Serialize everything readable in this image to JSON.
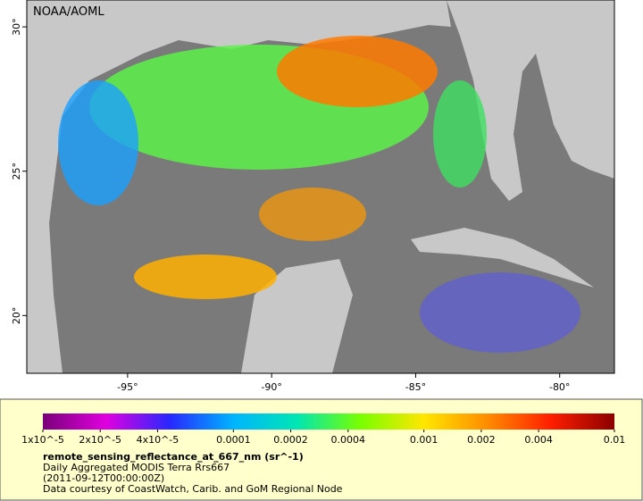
{
  "map": {
    "credit": "NOAA/AOML",
    "xlim": [
      -98.5,
      -78.1
    ],
    "ylim": [
      18.0,
      30.93
    ],
    "xticks": [
      {
        "value": -95,
        "label": "-95°"
      },
      {
        "value": -90,
        "label": "-90°"
      },
      {
        "value": -85,
        "label": "-85°"
      },
      {
        "value": -80,
        "label": "-80°"
      }
    ],
    "yticks": [
      {
        "value": 20,
        "label": "20°"
      },
      {
        "value": 25,
        "label": "25°"
      },
      {
        "value": 30,
        "label": "30°"
      }
    ]
  },
  "colorbar": {
    "scale": "log",
    "lim": [
      1e-05,
      0.01
    ],
    "colors": [
      "#7a007a",
      "#e000e0",
      "#2828ff",
      "#00b4ff",
      "#00e6b4",
      "#78ff00",
      "#ffe600",
      "#ff8c00",
      "#ff1e00",
      "#8b0000"
    ],
    "ticks": [
      {
        "value": 1e-05,
        "label": "1x10^-5"
      },
      {
        "value": 2e-05,
        "label": "2x10^-5"
      },
      {
        "value": 4e-05,
        "label": "4x10^-5"
      },
      0.0001,
      0.0002,
      0.0004,
      0.001,
      0.002,
      0.004,
      0.01
    ]
  },
  "caption": {
    "title": "remote_sensing_reflectance_at_667_nm (sr^-1)",
    "lines": [
      "Daily Aggregated MODIS Terra Rrs667",
      "(2011-09-12T00:00:00Z)",
      "Data courtesy of CoastWatch, Carib. and GoM Regional Node"
    ]
  }
}
